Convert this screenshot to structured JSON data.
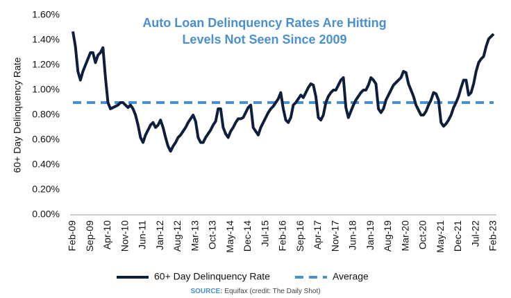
{
  "chart_data": {
    "type": "line",
    "title": [
      "Auto Loan Delinquency Rates Are Hitting",
      "Levels Not Seen Since 2009"
    ],
    "y_label": "60+ Day Delinquency Rate",
    "categories": [
      "Feb-09",
      null,
      null,
      null,
      null,
      null,
      null,
      "Sep-09",
      null,
      null,
      null,
      null,
      null,
      null,
      "Apr-10",
      null,
      null,
      null,
      null,
      null,
      null,
      "Nov-10",
      null,
      null,
      null,
      null,
      null,
      null,
      "Jun-11",
      null,
      null,
      null,
      null,
      null,
      null,
      "Jan-12",
      null,
      null,
      null,
      null,
      null,
      null,
      "Aug-12",
      null,
      null,
      null,
      null,
      null,
      null,
      "Mar-13",
      null,
      null,
      null,
      null,
      null,
      null,
      "Oct-13",
      null,
      null,
      null,
      null,
      null,
      null,
      "May-14",
      null,
      null,
      null,
      null,
      null,
      null,
      "Dec-14",
      null,
      null,
      null,
      null,
      null,
      null,
      "Jul-15",
      null,
      null,
      null,
      null,
      null,
      null,
      "Feb-16",
      null,
      null,
      null,
      null,
      null,
      null,
      "Sep-16",
      null,
      null,
      null,
      null,
      null,
      null,
      "Apr-17",
      null,
      null,
      null,
      null,
      null,
      null,
      "Nov-17",
      null,
      null,
      null,
      null,
      null,
      null,
      "Jun-18",
      null,
      null,
      null,
      null,
      null,
      null,
      "Jan-19",
      null,
      null,
      null,
      null,
      null,
      null,
      "Aug-19",
      null,
      null,
      null,
      null,
      null,
      null,
      "Mar-20",
      null,
      null,
      null,
      null,
      null,
      null,
      "Oct-20",
      null,
      null,
      null,
      null,
      null,
      null,
      "May-21",
      null,
      null,
      null,
      null,
      null,
      null,
      "Dec-21",
      null,
      null,
      null,
      null,
      null,
      null,
      "Jul-22",
      null,
      null,
      null,
      null,
      null,
      null,
      "Feb-23"
    ],
    "series": [
      {
        "name": "60+ Day Delinquency Rate",
        "color": "#0d1f3c",
        "values": [
          1.47,
          1.35,
          1.15,
          1.08,
          1.15,
          1.2,
          1.25,
          1.3,
          1.3,
          1.22,
          1.28,
          1.3,
          1.34,
          1.1,
          0.9,
          0.85,
          0.86,
          0.87,
          0.88,
          0.9,
          0.9,
          0.88,
          0.86,
          0.88,
          0.85,
          0.8,
          0.72,
          0.62,
          0.58,
          0.64,
          0.68,
          0.72,
          0.74,
          0.7,
          0.72,
          0.76,
          0.7,
          0.62,
          0.55,
          0.51,
          0.55,
          0.58,
          0.62,
          0.64,
          0.67,
          0.7,
          0.74,
          0.77,
          0.8,
          0.75,
          0.62,
          0.58,
          0.58,
          0.62,
          0.65,
          0.68,
          0.72,
          0.75,
          0.85,
          0.85,
          0.7,
          0.65,
          0.62,
          0.67,
          0.7,
          0.74,
          0.77,
          0.77,
          0.78,
          0.82,
          0.86,
          0.88,
          0.7,
          0.67,
          0.64,
          0.7,
          0.74,
          0.78,
          0.82,
          0.85,
          0.87,
          0.9,
          0.93,
          0.98,
          0.85,
          0.76,
          0.74,
          0.78,
          0.88,
          0.9,
          0.93,
          0.96,
          0.94,
          0.98,
          1.02,
          1.05,
          1.04,
          0.95,
          0.78,
          0.76,
          0.8,
          0.9,
          0.95,
          0.98,
          1.0,
          1.0,
          1.04,
          1.08,
          1.1,
          0.86,
          0.78,
          0.83,
          0.88,
          0.92,
          0.95,
          0.98,
          1.0,
          1.0,
          1.04,
          1.1,
          1.08,
          1.05,
          0.85,
          0.82,
          0.85,
          0.92,
          0.96,
          1.0,
          1.04,
          1.06,
          1.08,
          1.1,
          1.15,
          1.14,
          1.05,
          1.0,
          0.95,
          0.88,
          0.84,
          0.8,
          0.8,
          0.83,
          0.88,
          0.92,
          0.98,
          0.97,
          0.92,
          0.74,
          0.71,
          0.73,
          0.76,
          0.8,
          0.86,
          0.9,
          0.95,
          1.02,
          1.08,
          1.08,
          0.96,
          0.98,
          1.05,
          1.15,
          1.22,
          1.25,
          1.27,
          1.35,
          1.41,
          1.43,
          1.45
        ]
      }
    ],
    "reference_lines": [
      {
        "name": "Average",
        "value": 0.9,
        "color": "#4a90d0",
        "dashed": true
      }
    ],
    "ylim": [
      0,
      1.6
    ],
    "yticks": [
      {
        "value": 0,
        "label": "0.00%"
      },
      {
        "value": 0.2,
        "label": "0.20%"
      },
      {
        "value": 0.4,
        "label": "0.40%"
      },
      {
        "value": 0.6,
        "label": "0.60%"
      },
      {
        "value": 0.8,
        "label": "0.80%"
      },
      {
        "value": 1.0,
        "label": "1.00%"
      },
      {
        "value": 1.2,
        "label": "1.20%"
      },
      {
        "value": 1.4,
        "label": "1.40%"
      },
      {
        "value": 1.6,
        "label": "1.60%"
      }
    ],
    "source_label": "SOURCE:",
    "source": "Equifax (credit: The Daily Shot)"
  }
}
